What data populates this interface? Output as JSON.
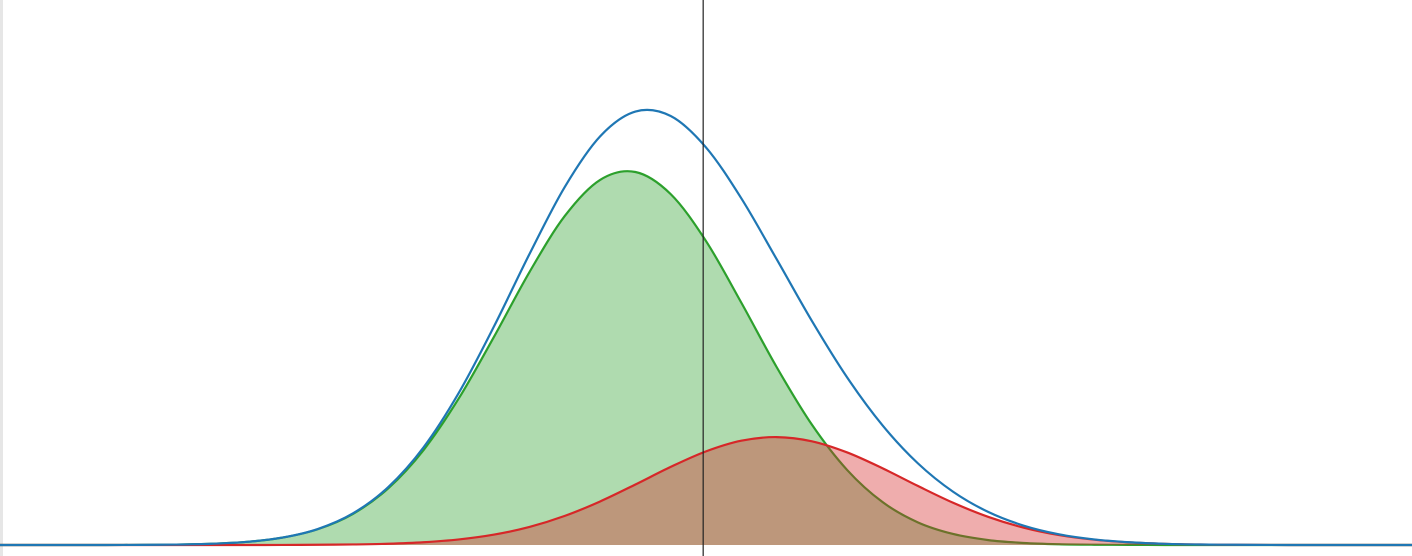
{
  "chart_data": {
    "type": "area",
    "x": [
      0,
      2.5,
      5,
      7.5,
      10,
      12.5,
      15,
      17.5,
      20,
      22.5,
      25,
      27.5,
      30,
      32.5,
      35,
      37.5,
      40,
      42.5,
      45,
      47.5,
      50,
      52.5,
      55,
      57.5,
      60,
      62.5,
      65,
      67.5,
      70,
      72.5,
      75,
      77.5,
      80,
      82.5,
      85,
      87.5,
      90,
      92.5,
      95,
      97.5,
      100
    ],
    "xlim": [
      0,
      100
    ],
    "ylim": [
      0,
      100
    ],
    "marker_x": 49.8,
    "series": [
      {
        "color": "#2ca02c",
        "filled": true,
        "values": [
          0,
          0,
          0,
          0,
          0.03,
          0.08,
          0.23,
          0.58,
          1.35,
          2.89,
          5.71,
          10.41,
          17.43,
          26.93,
          38.27,
          50.09,
          60.37,
          66.99,
          68.44,
          64.38,
          55.77,
          44.47,
          32.66,
          22.08,
          13.75,
          7.88,
          4.16,
          2.02,
          0.9,
          0.37,
          0.14,
          0.05,
          0.02,
          0,
          0,
          0,
          0,
          0,
          0,
          0,
          0
        ]
      },
      {
        "color": "#d62728",
        "filled": true,
        "values": [
          0,
          0,
          0,
          0,
          0,
          0,
          0,
          0,
          0.01,
          0.04,
          0.1,
          0.23,
          0.51,
          1.02,
          1.91,
          3.31,
          5.34,
          7.99,
          11.1,
          14.33,
          17.18,
          19.14,
          19.8,
          19.03,
          16.98,
          14.08,
          10.84,
          7.75,
          5.15,
          3.18,
          1.82,
          0.97,
          0.48,
          0.22,
          0.09,
          0.04,
          0.01,
          0,
          0,
          0,
          0
        ]
      },
      {
        "color": "#1f77b4",
        "filled": false,
        "values": [
          0,
          0,
          0,
          0,
          0.03,
          0.08,
          0.23,
          0.58,
          1.36,
          2.93,
          5.81,
          10.64,
          17.94,
          27.95,
          40.18,
          53.4,
          65.71,
          74.98,
          79.54,
          78.71,
          72.95,
          63.61,
          52.46,
          41.11,
          30.73,
          21.96,
          15.0,
          9.77,
          6.05,
          3.55,
          1.96,
          1.02,
          0.5,
          0.22,
          0.09,
          0.04,
          0.01,
          0,
          0,
          0,
          0
        ]
      }
    ]
  }
}
